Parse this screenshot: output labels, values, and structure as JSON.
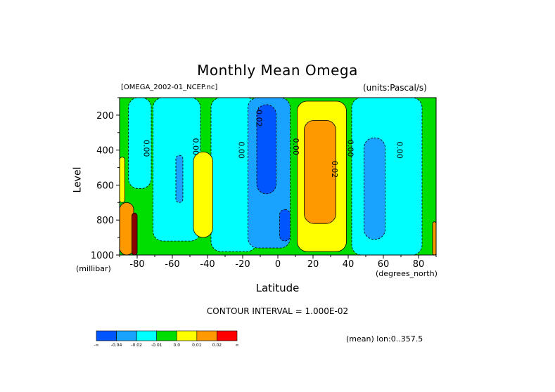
{
  "title": "Monthly Mean Omega",
  "file_label": "[OMEGA_2002-01_NCEP.nc]",
  "units_label": "(units:Pascal/s)",
  "contour_interval": "CONTOUR INTERVAL = 1.000E-02",
  "mean_note": "(mean) lon:0..357.5",
  "chart_data": {
    "type": "heatmap",
    "title": "Monthly Mean Omega",
    "xlabel": "Latitude",
    "ylabel": "Level",
    "x_unit": "(degrees_north)",
    "y_unit": "(millibar)",
    "xlim": [
      -90,
      90
    ],
    "ylim": [
      1000,
      100
    ],
    "x_ticks": [
      -80,
      -60,
      -40,
      -20,
      0,
      20,
      40,
      60,
      80
    ],
    "y_ticks": [
      200,
      400,
      600,
      800,
      1000
    ],
    "x_tick_labels": [
      "-80",
      "-60",
      "-40",
      "-20",
      "0",
      "20",
      "40",
      "60",
      "80"
    ],
    "y_tick_labels": [
      "200",
      "400",
      "600",
      "800",
      "1000"
    ],
    "contour_labels": [
      {
        "text": "0.00",
        "lat": -75,
        "lev": 390
      },
      {
        "text": "0.00",
        "lat": -47,
        "lev": 380
      },
      {
        "text": "0.00",
        "lat": -21,
        "lev": 400
      },
      {
        "text": "-0.02",
        "lat": -11,
        "lev": 210
      },
      {
        "text": "0.00",
        "lat": 10,
        "lev": 380
      },
      {
        "text": "0.02",
        "lat": 32,
        "lev": 510
      },
      {
        "text": "0.00",
        "lat": 41,
        "lev": 390
      },
      {
        "text": "0.00",
        "lat": 69,
        "lev": 400
      }
    ],
    "regions": [
      {
        "level": "0.0",
        "lat": [
          -90,
          90
        ],
        "lev": [
          100,
          1000
        ]
      },
      {
        "level": "-0.01",
        "lat": [
          -85,
          -72
        ],
        "lev": [
          100,
          620
        ]
      },
      {
        "level": "-0.01",
        "lat": [
          -71,
          -44
        ],
        "lev": [
          100,
          920
        ]
      },
      {
        "level": "-0.01",
        "lat": [
          -38,
          -12
        ],
        "lev": [
          100,
          980
        ]
      },
      {
        "level": "-0.02",
        "lat": [
          -17,
          7
        ],
        "lev": [
          100,
          960
        ]
      },
      {
        "level": "-0.04",
        "lat": [
          -12,
          -1
        ],
        "lev": [
          140,
          650
        ]
      },
      {
        "level": "-0.04",
        "lat": [
          1,
          7
        ],
        "lev": [
          740,
          920
        ]
      },
      {
        "level": "-0.01",
        "lat": [
          42,
          82
        ],
        "lev": [
          100,
          1000
        ]
      },
      {
        "level": "-0.02",
        "lat": [
          49,
          61
        ],
        "lev": [
          330,
          910
        ]
      },
      {
        "level": "-0.02",
        "lat": [
          -58,
          -54
        ],
        "lev": [
          430,
          700
        ]
      },
      {
        "level": "0.01",
        "lat": [
          -48,
          -37
        ],
        "lev": [
          410,
          900
        ]
      },
      {
        "level": "0.01",
        "lat": [
          11,
          39
        ],
        "lev": [
          120,
          980
        ]
      },
      {
        "level": "0.02",
        "lat": [
          15,
          33
        ],
        "lev": [
          230,
          820
        ]
      },
      {
        "level": "0.01",
        "lat": [
          -90,
          -87
        ],
        "lev": [
          440,
          700
        ]
      },
      {
        "level": "0.02",
        "lat": [
          -90,
          -82
        ],
        "lev": [
          700,
          1000
        ]
      },
      {
        "level": "max",
        "lat": [
          -83,
          -80
        ],
        "lev": [
          760,
          1000
        ]
      },
      {
        "level": "0.02",
        "lat": [
          88,
          90
        ],
        "lev": [
          810,
          1000
        ]
      }
    ],
    "legend": {
      "levels": [
        "-0.04",
        "-0.02",
        "-0.01",
        "0.0",
        "0.01",
        "0.02"
      ],
      "colors": [
        "#0055ff",
        "#1aa2ff",
        "#00ffff",
        "#00dd00",
        "#ffff00",
        "#ff9900",
        "#ff0000"
      ],
      "max_color": "#8b0000",
      "ends": [
        "-∞",
        "∞"
      ]
    }
  }
}
